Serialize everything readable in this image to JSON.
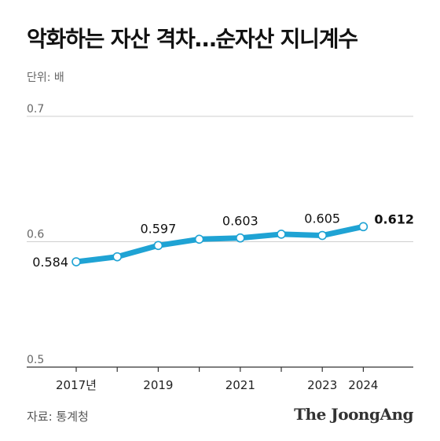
{
  "header": {
    "title": "악화하는 자산 격차…순자산 지니계수",
    "unit": "단위: 배"
  },
  "footer": {
    "source": "자료: 통계청",
    "logo": "The JoongAng"
  },
  "colors": {
    "line": "#1fa3d4",
    "grid": "#cfcfcf",
    "axis": "#333333",
    "marker_fill": "#ffffff"
  },
  "chart_data": {
    "type": "line",
    "title": "악화하는 자산 격차…순자산 지니계수",
    "xlabel": "",
    "ylabel": "단위: 배",
    "ylim": [
      0.5,
      0.7
    ],
    "y_ticks": [
      "0.5",
      "0.6",
      "0.7"
    ],
    "x": [
      2017,
      2018,
      2019,
      2020,
      2021,
      2022,
      2023,
      2024
    ],
    "x_tick_labels": [
      "2017년",
      "",
      "2019",
      "",
      "2021",
      "",
      "2023",
      "2024"
    ],
    "series": [
      {
        "values": [
          0.584,
          0.588,
          0.597,
          0.602,
          0.603,
          0.606,
          0.605,
          0.612
        ],
        "data_labels": [
          "0.584",
          "",
          "0.597",
          "",
          "0.603",
          "",
          "0.605",
          "0.612"
        ]
      }
    ],
    "grid": true,
    "legend": "none"
  }
}
